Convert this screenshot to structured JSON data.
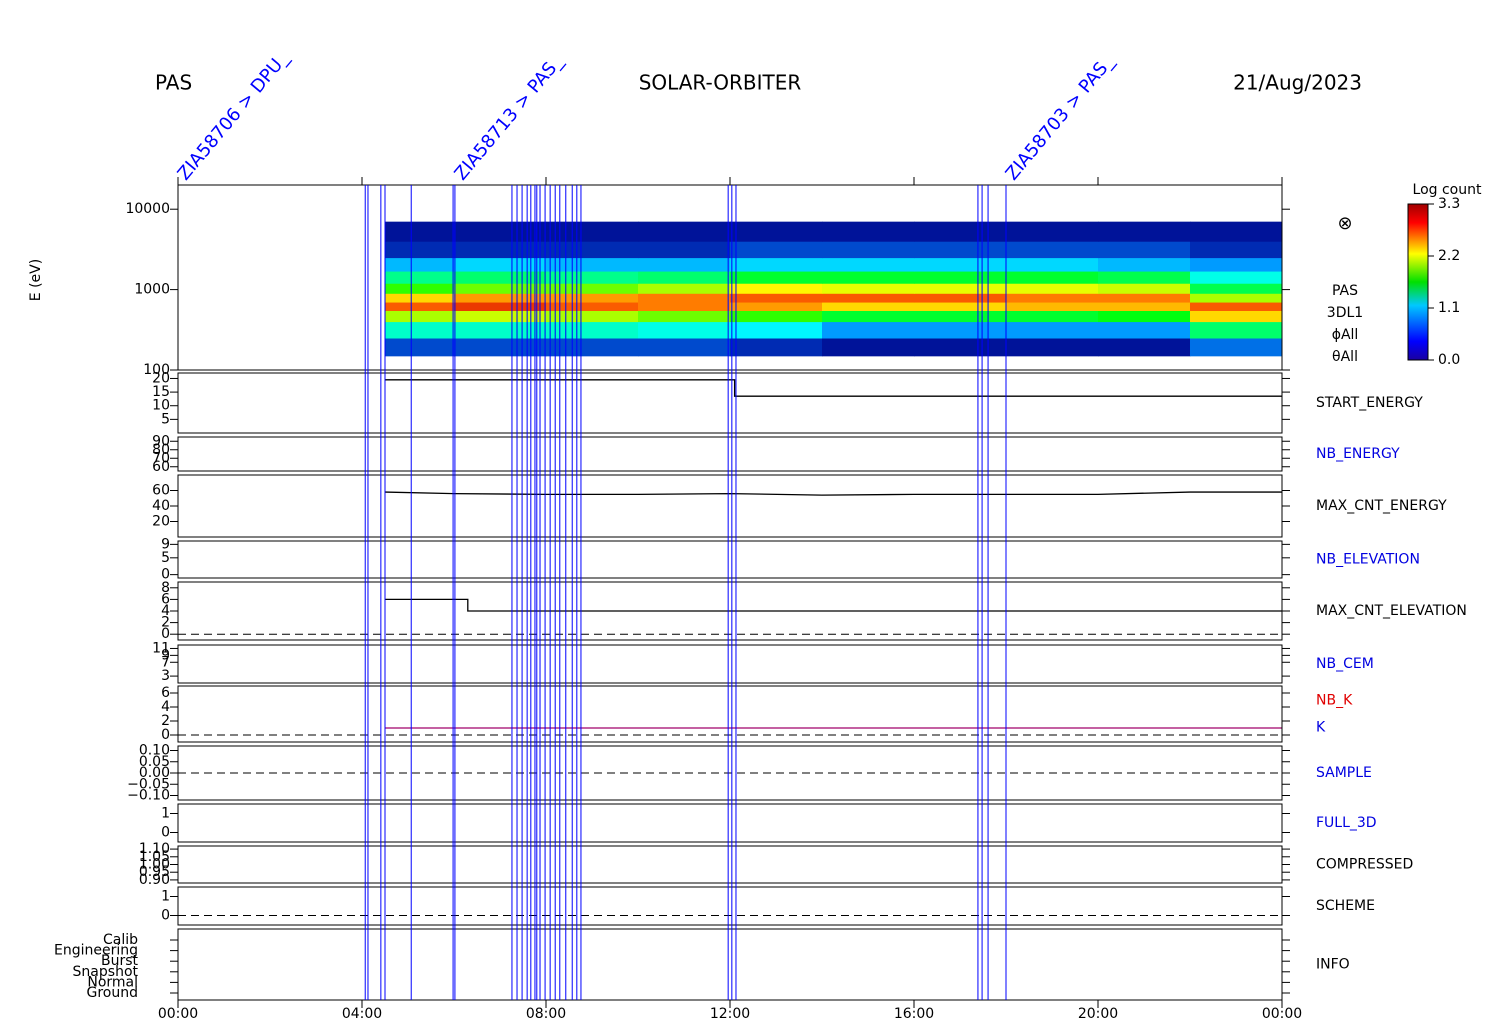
{
  "header": {
    "instrument": "PAS",
    "mission": "SOLAR-ORBITER",
    "date": "21/Aug/2023"
  },
  "xlim": [
    0,
    24
  ],
  "xticks": [
    {
      "value": 0,
      "label": "00:00"
    },
    {
      "value": 4,
      "label": "04:00"
    },
    {
      "value": 8,
      "label": "08:00"
    },
    {
      "value": 12,
      "label": "12:00"
    },
    {
      "value": 16,
      "label": "16:00"
    },
    {
      "value": 20,
      "label": "20:00"
    },
    {
      "value": 24,
      "label": "00:00"
    }
  ],
  "events": {
    "color": "#0000ff",
    "x": [
      4.07,
      4.13,
      4.41,
      4.5,
      5.07,
      5.98,
      6.02,
      7.26,
      7.37,
      7.48,
      7.59,
      7.67,
      7.76,
      7.8,
      7.87,
      7.98,
      8.09,
      8.2,
      8.3,
      8.43,
      8.57,
      8.67,
      8.76,
      11.96,
      12.04,
      12.13,
      17.39,
      17.48,
      17.61,
      18.0
    ],
    "labels": [
      {
        "x": 0,
        "text": "ZIA58706 > DPU_"
      },
      {
        "x": 6.02,
        "text": "ZIA58713 > PAS_"
      },
      {
        "x": 18.0,
        "text": "ZIA58703 > PAS_"
      }
    ]
  },
  "chart_data": [
    {
      "type": "heatmap",
      "ylabel": "E (eV)",
      "log": true,
      "ylim": [
        100,
        20000
      ],
      "yticks": [
        100,
        1000,
        10000
      ],
      "x_bins": [
        4.5,
        6,
        8,
        10,
        12,
        14,
        16,
        18,
        20,
        22,
        24
      ],
      "y_bins": [
        150,
        250,
        400,
        550,
        700,
        900,
        1200,
        1700,
        2500,
        4000,
        7000
      ],
      "z": [
        [
          0.3,
          0.3,
          0.3,
          0.3,
          0.2,
          0.1,
          0.1,
          0.1,
          0.1,
          0.4
        ],
        [
          1.0,
          1.0,
          1.0,
          0.9,
          0.8,
          0.5,
          0.5,
          0.5,
          0.5,
          1.3
        ],
        [
          2.2,
          2.3,
          2.2,
          2.0,
          1.8,
          1.5,
          1.5,
          1.5,
          1.6,
          2.6
        ],
        [
          3.0,
          3.1,
          3.0,
          2.9,
          2.8,
          2.6,
          2.6,
          2.7,
          2.7,
          3.0
        ],
        [
          2.6,
          2.8,
          2.8,
          2.9,
          3.0,
          3.0,
          3.0,
          2.9,
          2.9,
          2.2
        ],
        [
          1.8,
          2.0,
          2.0,
          2.2,
          2.5,
          2.4,
          2.4,
          2.4,
          2.3,
          1.4
        ],
        [
          1.2,
          1.3,
          1.2,
          1.3,
          1.5,
          1.5,
          1.5,
          1.5,
          1.4,
          0.9
        ],
        [
          0.6,
          0.7,
          0.6,
          0.6,
          0.7,
          0.7,
          0.7,
          0.7,
          0.6,
          0.5
        ],
        [
          0.2,
          0.2,
          0.2,
          0.2,
          0.3,
          0.3,
          0.3,
          0.3,
          0.3,
          0.2
        ],
        [
          0.1,
          0.1,
          0.1,
          0.1,
          0.1,
          0.1,
          0.1,
          0.1,
          0.1,
          0.1
        ]
      ],
      "zlabel": "Log count",
      "zlim": [
        0,
        3.3
      ],
      "zticks": [
        {
          "value": 0,
          "label": "0.0"
        },
        {
          "value": 1.1,
          "label": "1.1"
        },
        {
          "value": 2.2,
          "label": "2.2"
        },
        {
          "value": 3.3,
          "label": "3.3"
        }
      ],
      "symbol": "⊗",
      "labels": [
        {
          "text": "PAS",
          "color": "#000000"
        },
        {
          "text": "3DL1",
          "color": "#000000"
        },
        {
          "text": "ϕAll",
          "color": "#000000"
        },
        {
          "text": "θAll",
          "color": "#000000"
        }
      ]
    },
    {
      "type": "line",
      "ylim": [
        0,
        22
      ],
      "yticks": [
        5,
        10,
        15,
        20
      ],
      "series": [
        {
          "color": "#000000",
          "x": [
            4.5,
            12.1,
            12.1,
            24
          ],
          "values": [
            19.5,
            19.5,
            13.5,
            13.5
          ]
        }
      ],
      "labels": [
        {
          "text": "START_ENERGY",
          "color": "#000000"
        }
      ]
    },
    {
      "type": "axes",
      "ylim": [
        55,
        95
      ],
      "yticks": [
        60,
        70,
        80,
        90
      ],
      "labels": [
        {
          "text": "NB_ENERGY",
          "color": "#0000e0"
        }
      ]
    },
    {
      "type": "line",
      "ylim": [
        0,
        80
      ],
      "yticks": [
        20,
        40,
        60
      ],
      "series": [
        {
          "color": "#000000",
          "x": [
            4.5,
            6,
            8,
            10,
            12,
            14,
            16,
            18,
            20,
            22,
            24
          ],
          "values": [
            58,
            56,
            55,
            55,
            56,
            54,
            55,
            55,
            55,
            58,
            58
          ]
        }
      ],
      "labels": [
        {
          "text": "MAX_CNT_ENERGY",
          "color": "#000000"
        }
      ]
    },
    {
      "type": "axes",
      "ylim": [
        -1,
        10
      ],
      "yticks": [
        0,
        5,
        9
      ],
      "labels": [
        {
          "text": "NB_ELEVATION",
          "color": "#0000e0"
        }
      ]
    },
    {
      "type": "line",
      "ylim": [
        -1,
        9
      ],
      "yticks": [
        0,
        2,
        4,
        6,
        8
      ],
      "zero_line": true,
      "series": [
        {
          "color": "#000000",
          "x": [
            4.5,
            6.3,
            6.3,
            24
          ],
          "values": [
            6,
            6,
            4,
            4
          ]
        }
      ],
      "labels": [
        {
          "text": "MAX_CNT_ELEVATION",
          "color": "#000000"
        }
      ]
    },
    {
      "type": "axes",
      "ylim": [
        1,
        12
      ],
      "yticks": [
        3,
        7,
        9,
        11
      ],
      "labels": [
        {
          "text": "NB_CEM",
          "color": "#0000e0"
        }
      ]
    },
    {
      "type": "line",
      "ylim": [
        -1,
        7
      ],
      "yticks": [
        0,
        2,
        4,
        6
      ],
      "zero_line": true,
      "series": [
        {
          "color": "#a0006a",
          "x": [
            4.5,
            24
          ],
          "values": [
            1,
            1
          ]
        }
      ],
      "labels": [
        {
          "text": "NB_K",
          "color": "#e00000"
        },
        {
          "text": "K",
          "color": "#0000e0"
        }
      ]
    },
    {
      "type": "axes",
      "ylim": [
        -0.12,
        0.12
      ],
      "zero_line": true,
      "yticks": [
        {
          "value": -0.1,
          "label": "−0.10"
        },
        {
          "value": -0.05,
          "label": "−0.05"
        },
        {
          "value": 0,
          "label": "0.00"
        },
        {
          "value": 0.05,
          "label": "0.05"
        },
        {
          "value": 0.1,
          "label": "0.10"
        }
      ],
      "labels": [
        {
          "text": "SAMPLE",
          "color": "#0000e0"
        }
      ]
    },
    {
      "type": "axes",
      "ylim": [
        -0.5,
        1.5
      ],
      "yticks": [
        0,
        1
      ],
      "labels": [
        {
          "text": "FULL_3D",
          "color": "#0000e0"
        }
      ]
    },
    {
      "type": "axes",
      "ylim": [
        0.88,
        1.12
      ],
      "yticks": [
        {
          "value": 0.9,
          "label": "0.90"
        },
        {
          "value": 0.95,
          "label": "0.95"
        },
        {
          "value": 1,
          "label": "1.00"
        },
        {
          "value": 1.05,
          "label": "1.05"
        },
        {
          "value": 1.1,
          "label": "1.10"
        }
      ],
      "labels": [
        {
          "text": "COMPRESSED",
          "color": "#000000"
        }
      ]
    },
    {
      "type": "axes",
      "ylim": [
        -0.5,
        1.5
      ],
      "yticks": [
        0,
        1
      ],
      "zero_line": true,
      "labels": [
        {
          "text": "SCHEME",
          "color": "#000000"
        }
      ]
    },
    {
      "type": "category",
      "categories": [
        "Calib",
        "Engineering",
        "Burst",
        "Snapshot",
        "Normal",
        "Ground"
      ],
      "labels": [
        {
          "text": "INFO",
          "color": "#000000"
        }
      ]
    }
  ]
}
